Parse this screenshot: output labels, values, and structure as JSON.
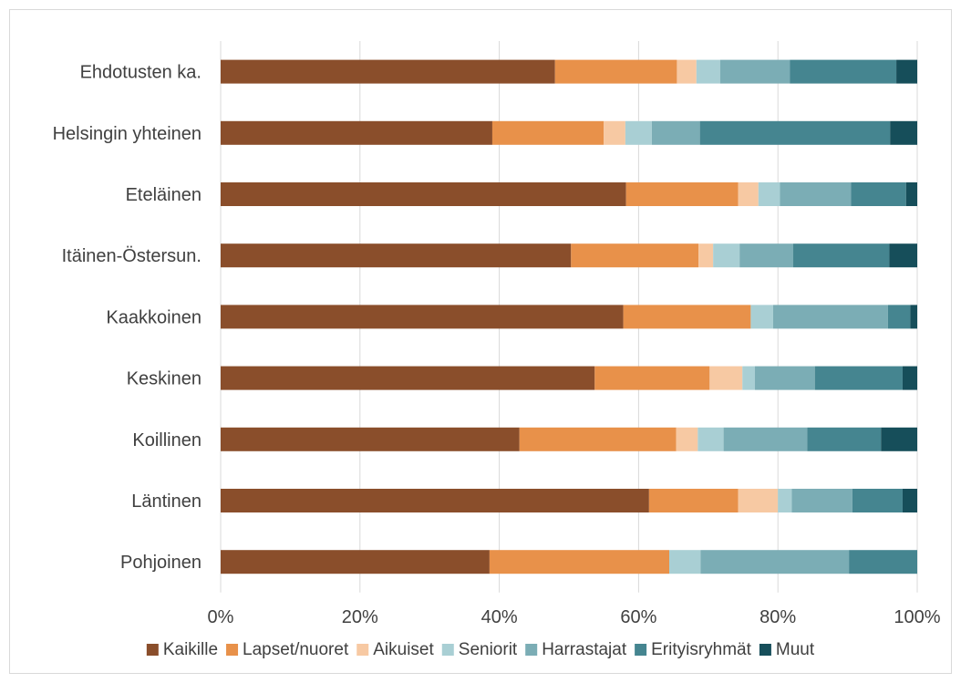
{
  "chart_data": {
    "type": "bar",
    "orientation": "horizontal",
    "stacked": "percent",
    "categories": [
      "Ehdotusten ka.",
      "Helsingin yhteinen",
      "Eteläinen",
      "Itäinen-Östersun.",
      "Kaakkoinen",
      "Keskinen",
      "Koillinen",
      "Läntinen",
      "Pohjoinen"
    ],
    "series": [
      {
        "name": "Kaikille",
        "color": "#8a4e2b",
        "values": [
          48,
          39,
          58.2,
          50.3,
          57.8,
          53.7,
          42.9,
          61.5,
          38.6
        ]
      },
      {
        "name": "Lapset/nuoret",
        "color": "#e8914a",
        "values": [
          17.5,
          16,
          16.1,
          18.3,
          18.3,
          16.5,
          22.5,
          12.8,
          25.8
        ]
      },
      {
        "name": "Aikuiset",
        "color": "#f7c9a3",
        "values": [
          2.8,
          3.1,
          2.9,
          2.1,
          0,
          4.7,
          3.1,
          5.7,
          0
        ]
      },
      {
        "name": "Seniorit",
        "color": "#a9cfd4",
        "values": [
          3.4,
          3.8,
          3.1,
          3.8,
          3.2,
          1.8,
          3.7,
          2.0,
          4.5
        ]
      },
      {
        "name": "Harrastajat",
        "color": "#7badb5",
        "values": [
          10.0,
          6.9,
          10.2,
          7.7,
          16.5,
          8.6,
          12.0,
          8.7,
          21.3
        ]
      },
      {
        "name": "Erityisryhmät",
        "color": "#458590",
        "values": [
          15.3,
          27.3,
          7.9,
          13.8,
          3.2,
          12.6,
          10.6,
          7.2,
          9.8
        ]
      },
      {
        "name": "Muut",
        "color": "#164e5a",
        "values": [
          3.0,
          3.9,
          1.6,
          4.0,
          1.0,
          2.1,
          5.2,
          2.1,
          0
        ]
      }
    ],
    "xlim": [
      0,
      100
    ],
    "x_ticks": [
      "0%",
      "20%",
      "40%",
      "60%",
      "80%",
      "100%"
    ],
    "grid": true,
    "legend_position": "bottom"
  }
}
